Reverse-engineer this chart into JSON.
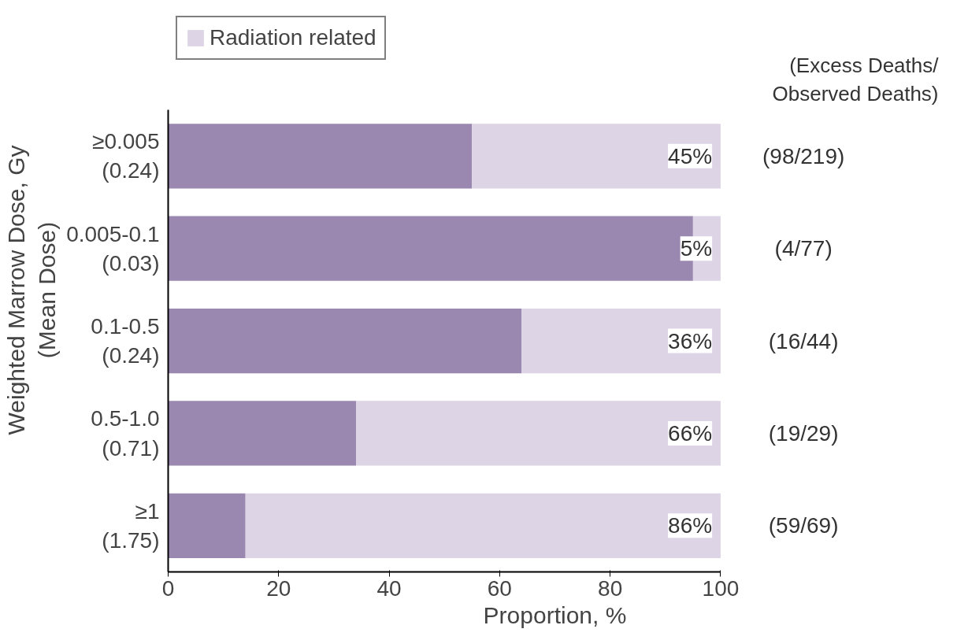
{
  "chart_data": {
    "type": "bar",
    "orientation": "horizontal",
    "stacked": true,
    "categories": [
      "≥0.005\n(0.24)",
      "0.005-0.1\n(0.03)",
      "0.1-0.5\n(0.24)",
      "0.5-1.0\n(0.71)",
      "≥1\n(1.75)"
    ],
    "series": [
      {
        "color": "#9b88b0",
        "values": [
          55,
          95,
          64,
          34,
          14
        ]
      },
      {
        "name": "Radiation related",
        "color": "#ddd5e6",
        "values": [
          45,
          5,
          36,
          66,
          86
        ],
        "value_labels": [
          "45%",
          "5%",
          "36%",
          "66%",
          "86%"
        ]
      }
    ],
    "xlabel": "Proportion, %",
    "ylabel": "Weighted Marrow Dose, Gy\n(Mean Dose)",
    "xlim": [
      0,
      100
    ],
    "xticks": [
      0,
      20,
      40,
      60,
      80,
      100
    ],
    "legend": "top left",
    "grid": false,
    "annotations": [
      "(Excess Deaths/\nObserved Deaths)",
      "(98/219)",
      "(4/77)",
      "(16/44)",
      "(19/29)",
      "(59/69)"
    ]
  }
}
